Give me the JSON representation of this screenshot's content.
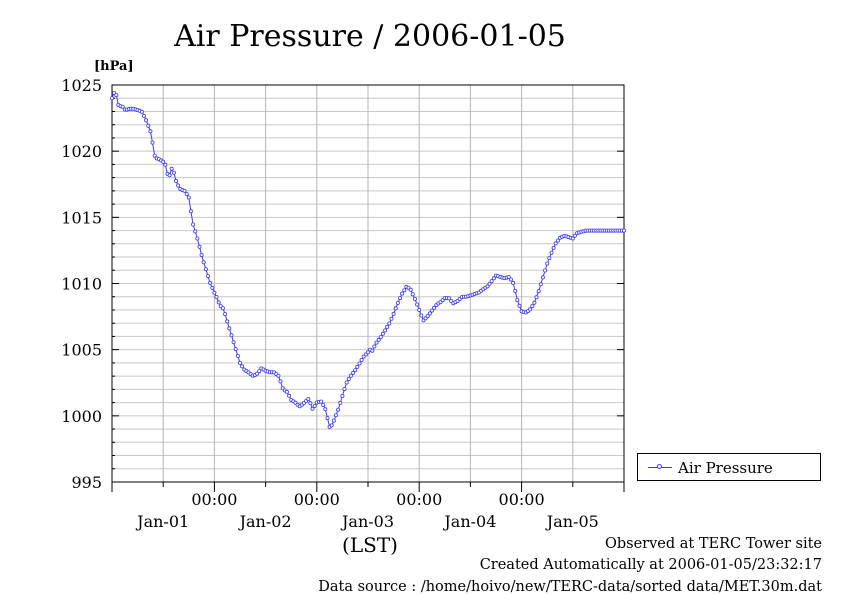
{
  "chart_data": {
    "type": "line",
    "title": "Air Pressure / 2006-01-05",
    "y_unit_label": "[hPa]",
    "x_axis_label": "(LST)",
    "ylim": [
      995,
      1025
    ],
    "y_ticks": [
      "995",
      "1000",
      "1005",
      "1010",
      "1015",
      "1020",
      "1025"
    ],
    "x_time_labels": [
      "00:00",
      "00:00",
      "00:00",
      "00:00"
    ],
    "x_date_labels": [
      "Jan-01",
      "Jan-02",
      "Jan-03",
      "Jan-04",
      "Jan-05"
    ],
    "grid": true,
    "legend_position": "right",
    "color": "#3b3bff",
    "series": [
      {
        "name": "Air Pressure",
        "day_offset": [
          0.0,
          0.02,
          0.04,
          0.06,
          0.08,
          0.1,
          0.13,
          0.17,
          0.21,
          0.25,
          0.29,
          0.33,
          0.38,
          0.42,
          0.46,
          0.5,
          0.52,
          0.54,
          0.56,
          0.58,
          0.6,
          0.63,
          0.67,
          0.71,
          0.75,
          0.79,
          0.83,
          0.88,
          0.92,
          0.96,
          1.0,
          1.02,
          1.04,
          1.06,
          1.08,
          1.1,
          1.13,
          1.17,
          1.21,
          1.25,
          1.29,
          1.33,
          1.38,
          1.42,
          1.46,
          1.5,
          1.54,
          1.58,
          1.63,
          1.67,
          1.71,
          1.75,
          1.79,
          1.83,
          1.88,
          1.92,
          1.96,
          2.0,
          2.04,
          2.08,
          2.13,
          2.17,
          2.21,
          2.25,
          2.29,
          2.33,
          2.38,
          2.42,
          2.46,
          2.5,
          2.52,
          2.54,
          2.58,
          2.63,
          2.67,
          2.71,
          2.75,
          2.79,
          2.83,
          2.88,
          2.92,
          2.96,
          3.0,
          3.04,
          3.08,
          3.13,
          3.17,
          3.21,
          3.25,
          3.29,
          3.33,
          3.38,
          3.42,
          3.46,
          3.5,
          3.54,
          3.58,
          3.63,
          3.67,
          3.71,
          3.75,
          3.79,
          3.83,
          3.88,
          3.92,
          3.96,
          4.0,
          4.04,
          4.08,
          4.13,
          4.17,
          4.21,
          4.25,
          4.29,
          4.33,
          4.38,
          4.42,
          4.46,
          4.5,
          4.54,
          4.58,
          4.63,
          4.67,
          4.71,
          4.75,
          4.79,
          4.83,
          4.88,
          4.92,
          4.96,
          5.0
        ],
        "values": [
          1024.0,
          1024.4,
          1024.3,
          1023.5,
          1023.4,
          1023.4,
          1023.1,
          1023.2,
          1023.2,
          1023.1,
          1023.0,
          1022.4,
          1021.4,
          1019.5,
          1019.4,
          1019.2,
          1019.0,
          1018.3,
          1018.1,
          1018.7,
          1018.5,
          1017.6,
          1017.1,
          1017.0,
          1016.5,
          1014.5,
          1013.5,
          1012.0,
          1011.0,
          1010.0,
          1009.3,
          1009.0,
          1008.6,
          1008.3,
          1008.2,
          1007.8,
          1007.0,
          1006.0,
          1005.0,
          1004.0,
          1003.5,
          1003.3,
          1003.0,
          1003.2,
          1003.6,
          1003.4,
          1003.3,
          1003.3,
          1003.0,
          1002.0,
          1001.8,
          1001.2,
          1001.0,
          1000.7,
          1001.0,
          1001.3,
          1000.5,
          1001.0,
          1001.1,
          1000.6,
          999.0,
          999.7,
          1000.5,
          1001.5,
          1002.5,
          1003.0,
          1003.5,
          1004.0,
          1004.5,
          1004.8,
          1005.0,
          1004.9,
          1005.5,
          1006.0,
          1006.5,
          1007.0,
          1007.7,
          1008.5,
          1009.2,
          1009.8,
          1009.5,
          1008.8,
          1008.0,
          1007.2,
          1007.5,
          1008.0,
          1008.4,
          1008.6,
          1008.9,
          1008.9,
          1008.5,
          1008.7,
          1009.0,
          1009.0,
          1009.1,
          1009.2,
          1009.3,
          1009.6,
          1009.8,
          1010.2,
          1010.6,
          1010.5,
          1010.4,
          1010.5,
          1010.0,
          1008.7,
          1007.9,
          1007.8,
          1008.0,
          1008.6,
          1009.5,
          1010.5,
          1011.5,
          1012.3,
          1013.0,
          1013.5,
          1013.6,
          1013.5,
          1013.4,
          1013.8,
          1013.9,
          1014.0,
          1014.0,
          1014.0,
          1014.0,
          1014.0,
          1014.0,
          1014.0,
          1014.0,
          1014.0,
          1014.0
        ]
      }
    ]
  },
  "footer": {
    "line1": "Observed at TERC Tower site",
    "line2": "Created Automatically at 2006-01-05/23:32:17",
    "line3": "Data source : /home/hoivo/new/TERC-data/sorted  data/MET.30m.dat"
  }
}
